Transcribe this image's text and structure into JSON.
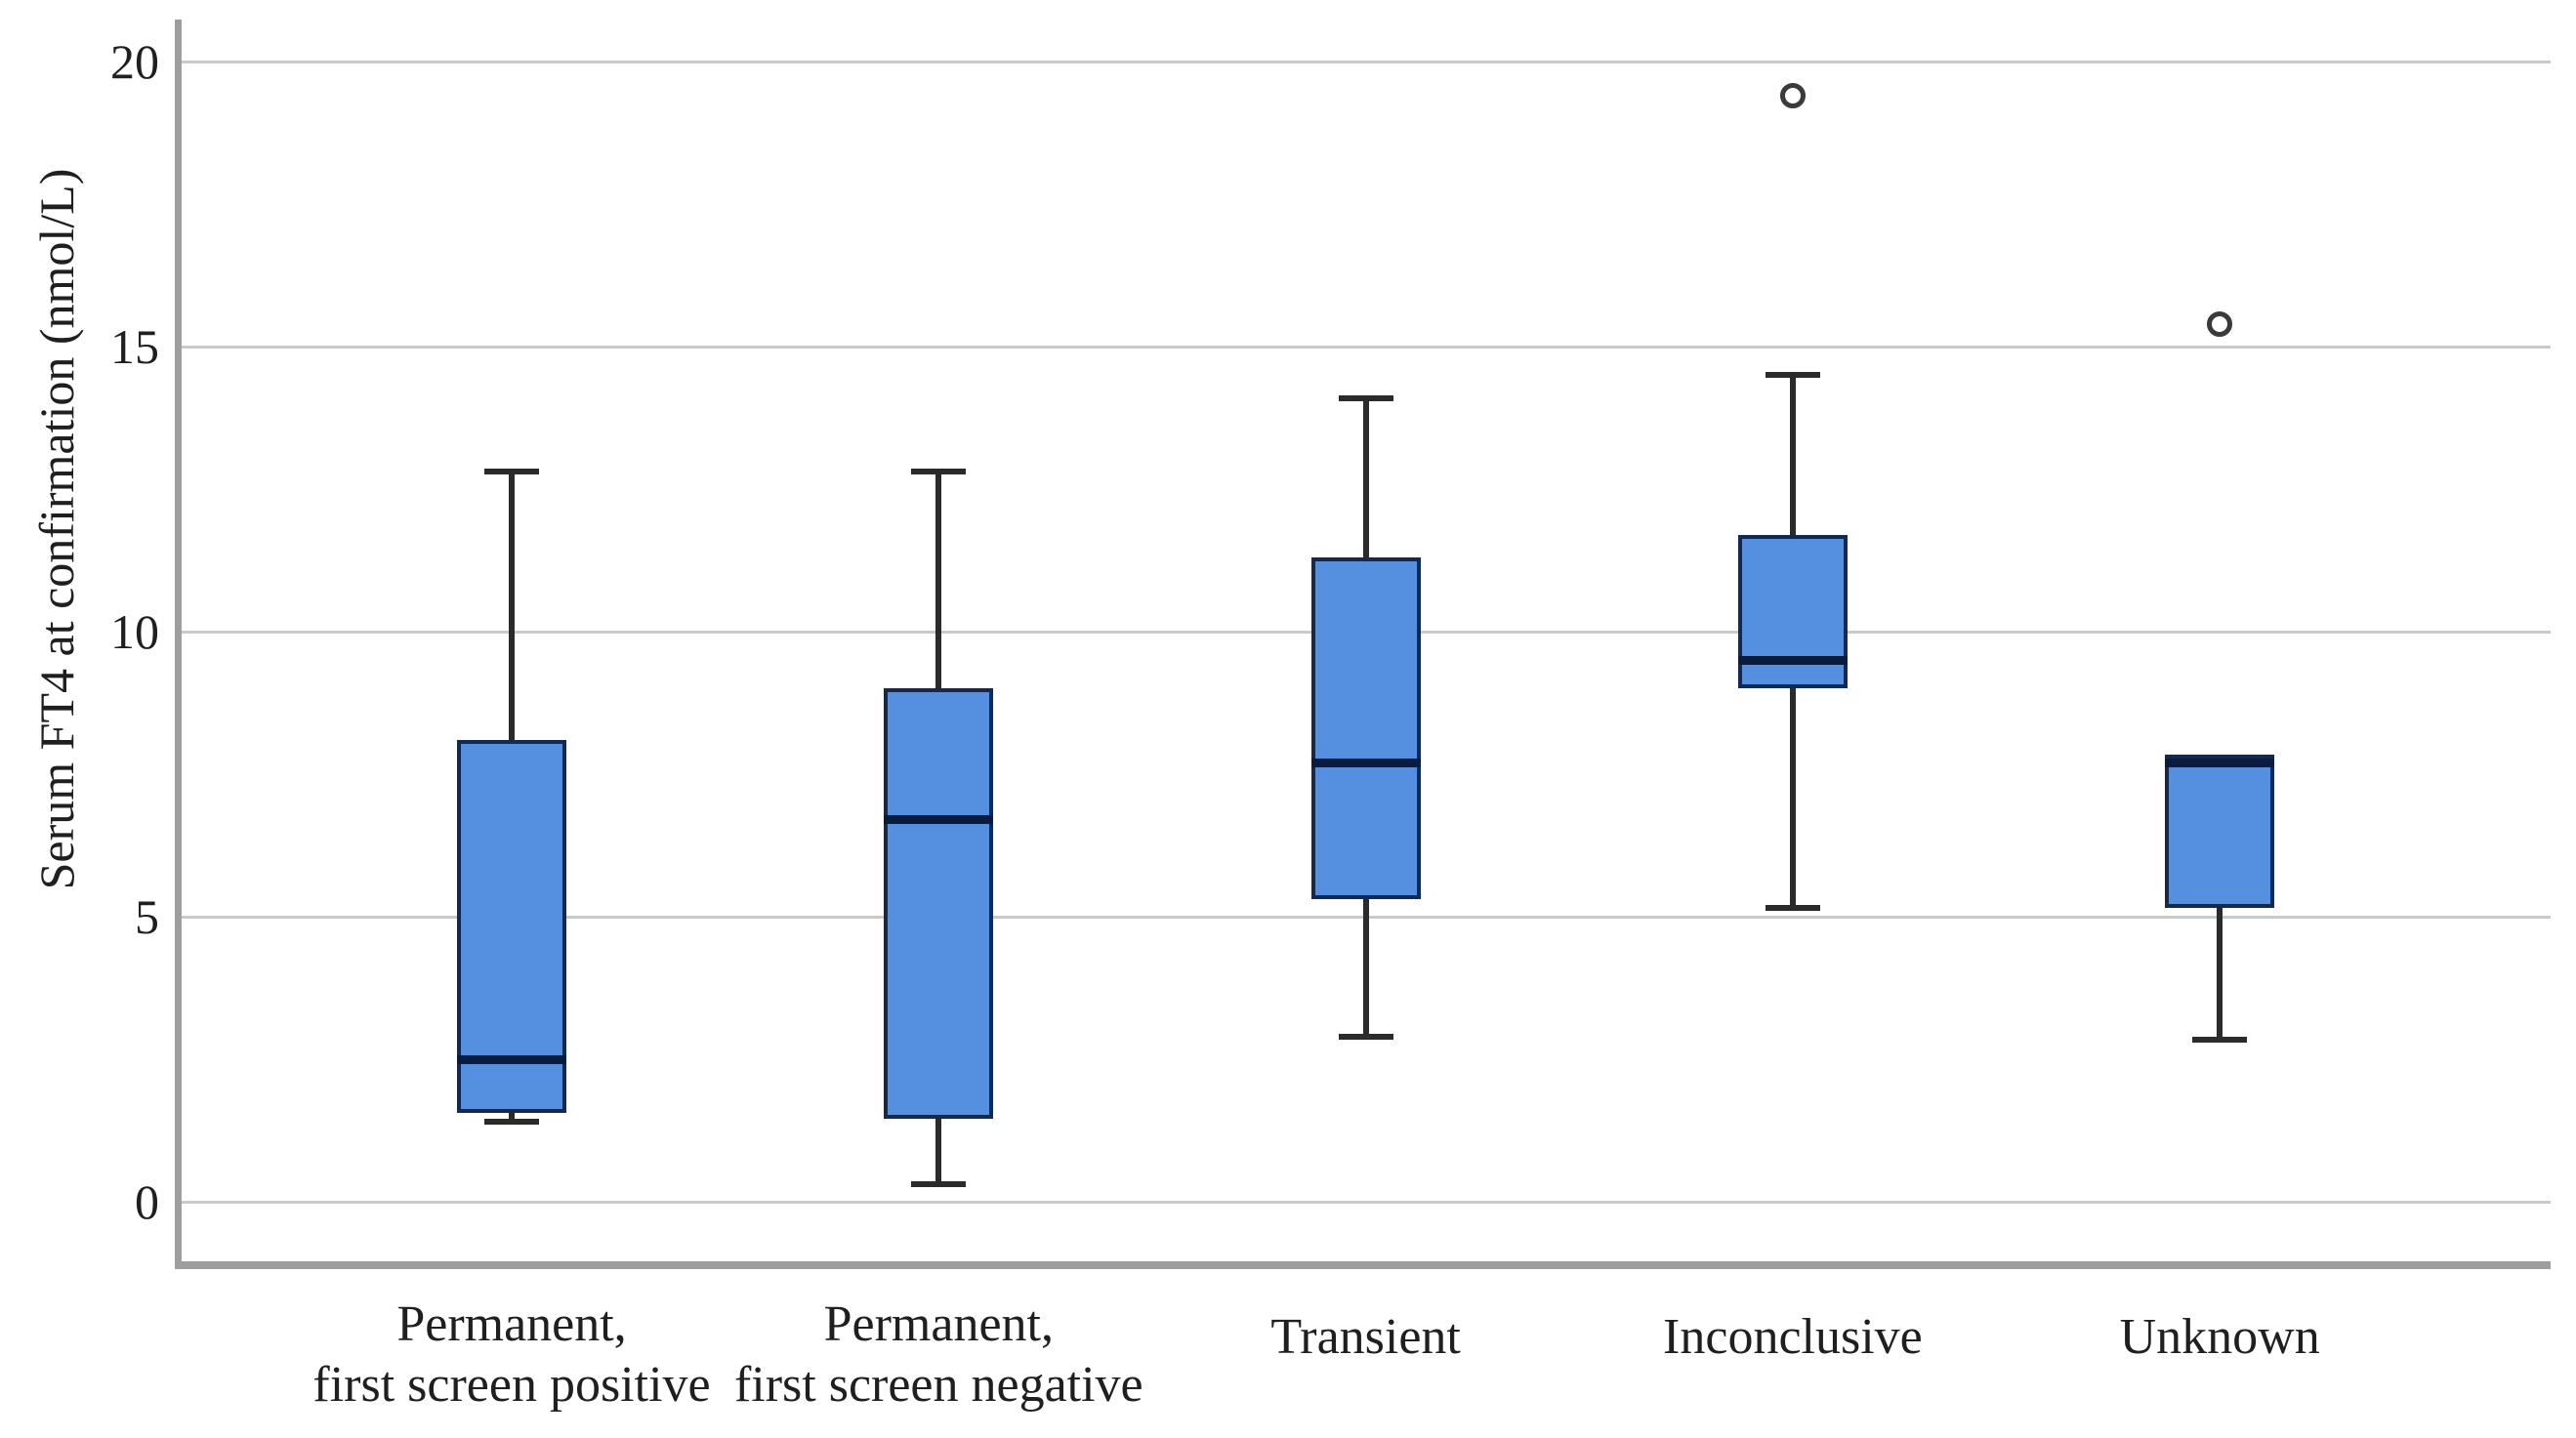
{
  "chart_data": {
    "type": "boxplot",
    "title": "",
    "xlabel": "",
    "ylabel": "Serum FT4 at confirmation (nmol/L)",
    "ylim": [
      0,
      20
    ],
    "yticks": [
      0,
      5,
      10,
      15,
      20
    ],
    "grid": "horizontal gridlines on",
    "legend": "none",
    "categories": [
      "Permanent,\nfirst screen positive",
      "Permanent,\nfirst screen negative",
      "Transient",
      "Inconclusive",
      "Unknown"
    ],
    "series": [
      {
        "category": "Permanent, first screen positive",
        "whisker_low": 1.4,
        "q1": 1.55,
        "median": 2.5,
        "q3": 8.1,
        "whisker_high": 12.8,
        "outliers": []
      },
      {
        "category": "Permanent, first screen negative",
        "whisker_low": 0.3,
        "q1": 1.45,
        "median": 6.7,
        "q3": 9.0,
        "whisker_high": 12.8,
        "outliers": []
      },
      {
        "category": "Transient",
        "whisker_low": 2.9,
        "q1": 5.3,
        "median": 7.7,
        "q3": 11.3,
        "whisker_high": 14.1,
        "outliers": []
      },
      {
        "category": "Inconclusive",
        "whisker_low": 5.15,
        "q1": 9.0,
        "median": 9.5,
        "q3": 11.7,
        "whisker_high": 14.5,
        "outliers": [
          19.4
        ]
      },
      {
        "category": "Unknown",
        "whisker_low": 2.85,
        "q1": 5.15,
        "median": 7.7,
        "q3": 7.85,
        "whisker_high": 7.85,
        "outliers": [
          15.4
        ]
      }
    ],
    "colors": {
      "box_fill": "#5590e0",
      "box_border": "#14294f",
      "median_line": "#0a1c3d",
      "whisker": "#2b2b2b",
      "outlier_ring": "#3a3a3a",
      "gridline": "#c9c9c9",
      "axis_line": "#9e9e9e",
      "label_text": "#1f1f1f",
      "background": "#ffffff"
    }
  }
}
